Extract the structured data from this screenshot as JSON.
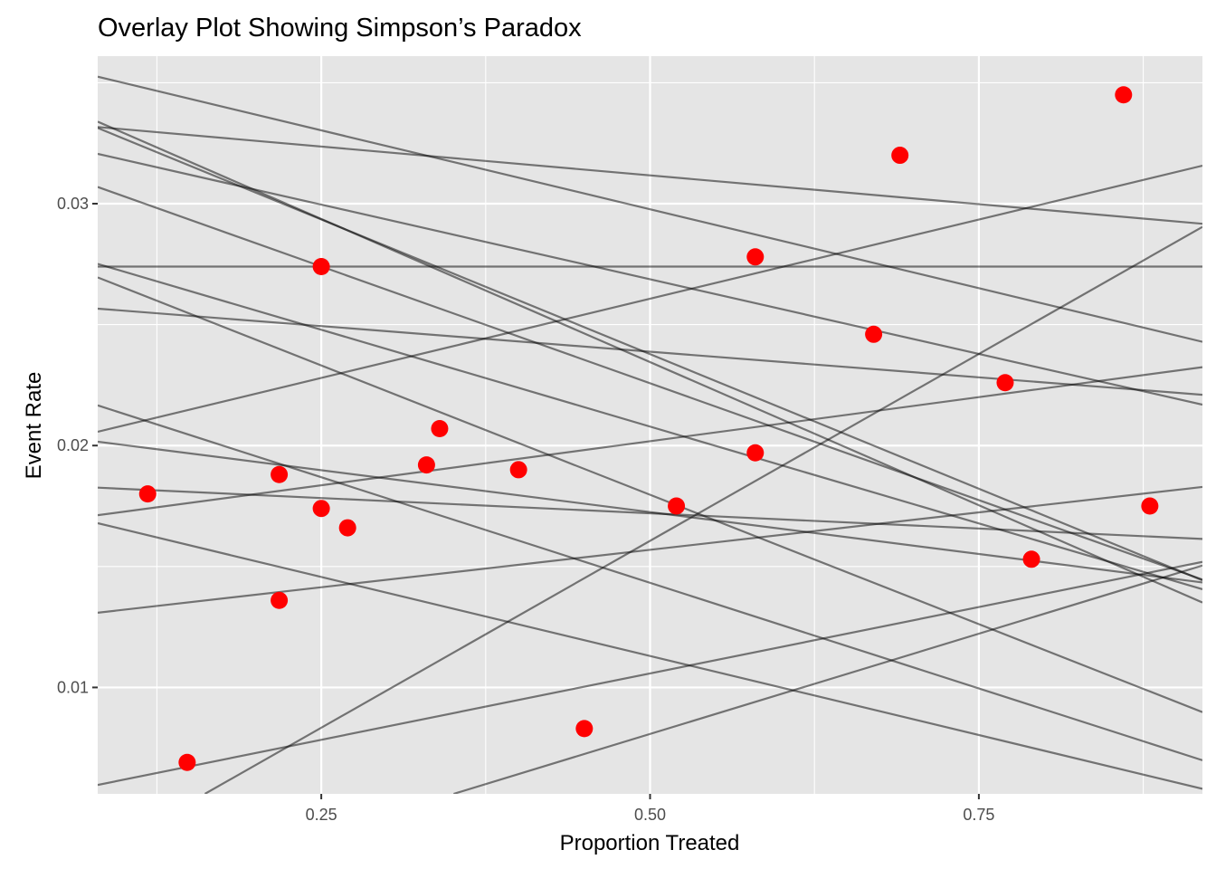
{
  "chart_data": {
    "type": "scatter",
    "title": "Overlay Plot Showing Simpson’s Paradox",
    "xlabel": "Proportion Treated",
    "ylabel": "Event Rate",
    "xlim": [
      0.08,
      0.92
    ],
    "ylim": [
      0.0056,
      0.0361
    ],
    "x_ticks": [
      {
        "value": 0.25,
        "label": "0.25"
      },
      {
        "value": 0.5,
        "label": "0.50"
      },
      {
        "value": 0.75,
        "label": "0.75"
      }
    ],
    "y_ticks": [
      {
        "value": 0.01,
        "label": "0.01"
      },
      {
        "value": 0.02,
        "label": "0.02"
      },
      {
        "value": 0.03,
        "label": "0.03"
      }
    ],
    "grid": true,
    "background": "#e5e5e5",
    "point_color": "#ff0000",
    "line_color": "#000000",
    "points": [
      {
        "x": 0.118,
        "y": 0.018
      },
      {
        "x": 0.148,
        "y": 0.0069
      },
      {
        "x": 0.218,
        "y": 0.0188
      },
      {
        "x": 0.218,
        "y": 0.0136
      },
      {
        "x": 0.25,
        "y": 0.0274
      },
      {
        "x": 0.25,
        "y": 0.0174
      },
      {
        "x": 0.27,
        "y": 0.0166
      },
      {
        "x": 0.33,
        "y": 0.0192
      },
      {
        "x": 0.34,
        "y": 0.0207
      },
      {
        "x": 0.4,
        "y": 0.019
      },
      {
        "x": 0.45,
        "y": 0.0083
      },
      {
        "x": 0.52,
        "y": 0.0175
      },
      {
        "x": 0.58,
        "y": 0.0278
      },
      {
        "x": 0.58,
        "y": 0.0197
      },
      {
        "x": 0.67,
        "y": 0.0246
      },
      {
        "x": 0.69,
        "y": 0.032
      },
      {
        "x": 0.77,
        "y": 0.0226
      },
      {
        "x": 0.79,
        "y": 0.0153
      },
      {
        "x": 0.86,
        "y": 0.0345
      },
      {
        "x": 0.88,
        "y": 0.0175
      }
    ],
    "lines": [
      {
        "x1": 0.08,
        "y1": 0.03525,
        "x2": 0.92,
        "y2": 0.02429
      },
      {
        "x1": 0.08,
        "y1": 0.03317,
        "x2": 0.92,
        "y2": 0.02917
      },
      {
        "x1": 0.08,
        "y1": 0.03206,
        "x2": 0.92,
        "y2": 0.02169
      },
      {
        "x1": 0.08,
        "y1": 0.03339,
        "x2": 0.92,
        "y2": 0.01351
      },
      {
        "x1": 0.08,
        "y1": 0.03313,
        "x2": 0.92,
        "y2": 0.01443
      },
      {
        "x1": 0.08,
        "y1": 0.03069,
        "x2": 0.92,
        "y2": 0.01446
      },
      {
        "x1": 0.08,
        "y1": 0.02751,
        "x2": 0.92,
        "y2": 0.01406
      },
      {
        "x1": 0.08,
        "y1": 0.0274,
        "x2": 0.92,
        "y2": 0.0274
      },
      {
        "x1": 0.08,
        "y1": 0.02695,
        "x2": 0.92,
        "y2": 0.00898
      },
      {
        "x1": 0.08,
        "y1": 0.02566,
        "x2": 0.92,
        "y2": 0.0221
      },
      {
        "x1": 0.08,
        "y1": 0.02057,
        "x2": 0.92,
        "y2": 0.03157
      },
      {
        "x1": 0.08,
        "y1": 0.02016,
        "x2": 0.92,
        "y2": 0.01434
      },
      {
        "x1": 0.08,
        "y1": 0.02166,
        "x2": 0.92,
        "y2": 0.00699
      },
      {
        "x1": 0.08,
        "y1": 0.01826,
        "x2": 0.92,
        "y2": 0.01614
      },
      {
        "x1": 0.08,
        "y1": 0.01712,
        "x2": 0.92,
        "y2": 0.02324
      },
      {
        "x1": 0.08,
        "y1": 0.01679,
        "x2": 0.92,
        "y2": 0.00581
      },
      {
        "x1": 0.08,
        "y1": 0.01309,
        "x2": 0.92,
        "y2": 0.01829
      },
      {
        "x1": 0.08,
        "y1": 0.00597,
        "x2": 0.92,
        "y2": 0.01519
      },
      {
        "x1": 0.1615,
        "y1": 0.0056,
        "x2": 0.92,
        "y2": 0.02904
      },
      {
        "x1": 0.3506,
        "y1": 0.0056,
        "x2": 0.92,
        "y2": 0.01504
      }
    ]
  }
}
